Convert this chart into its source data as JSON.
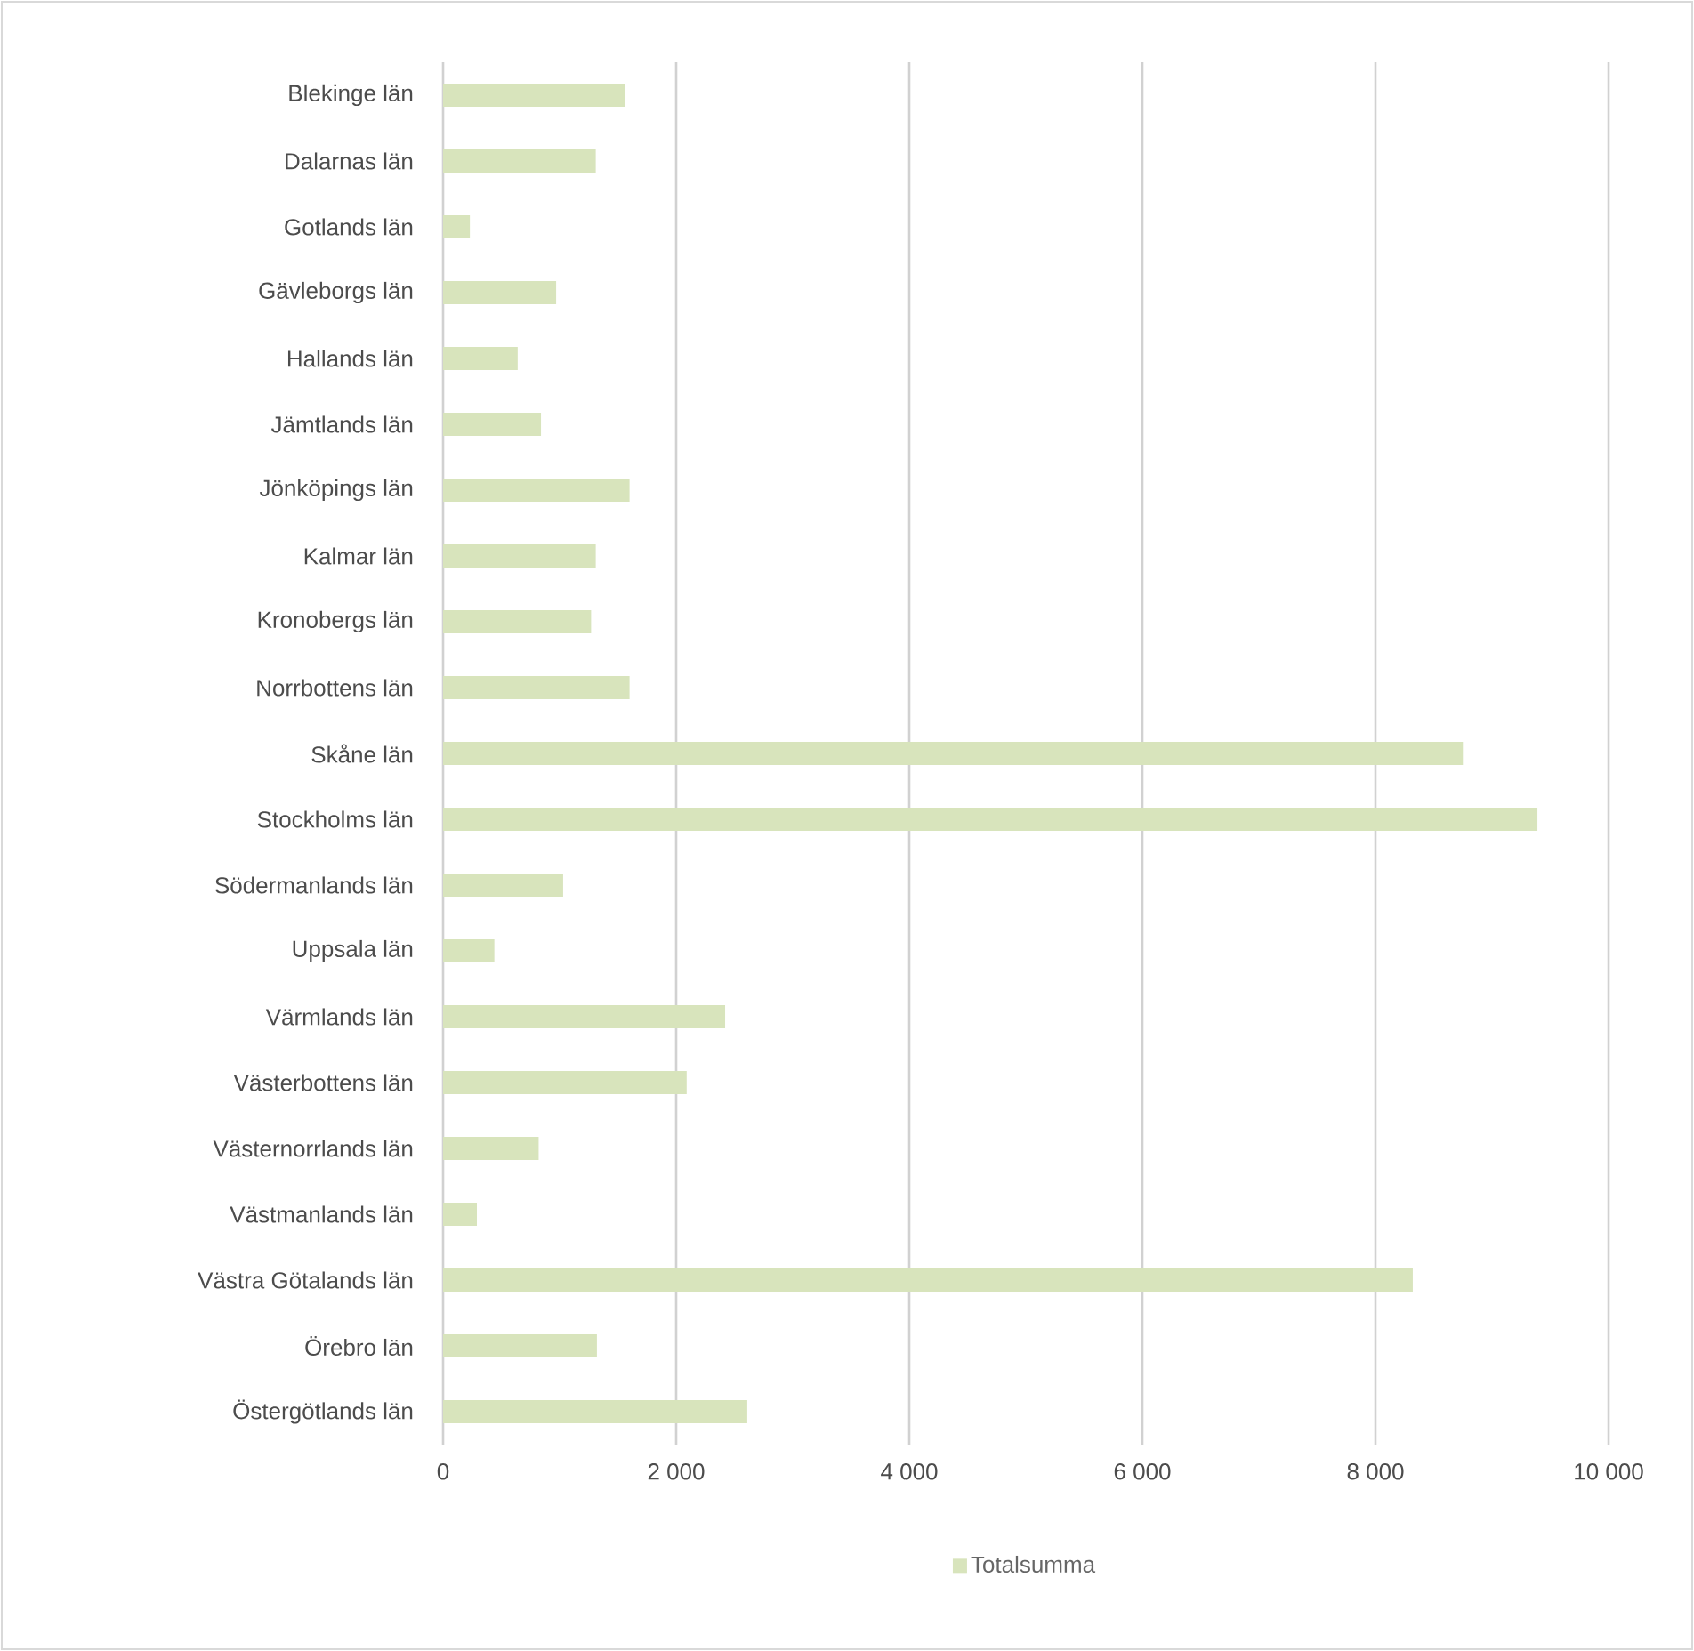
{
  "chart_data": {
    "type": "bar",
    "orientation": "horizontal",
    "categories": [
      "Blekinge län",
      "Dalarnas län",
      "Gotlands län",
      "Gävleborgs län",
      "Hallands län",
      "Jämtlands län",
      "Jönköpings län",
      "Kalmar län",
      "Kronobergs län",
      "Norrbottens län",
      "Skåne län",
      "Stockholms län",
      "Södermanlands län",
      "Uppsala län",
      "Värmlands län",
      "Västerbottens län",
      "Västernorrlands län",
      "Västmanlands län",
      "Västra Götalands län",
      "Örebro län",
      "Östergötlands län"
    ],
    "series": [
      {
        "name": "Totalsumma",
        "color": "#d8e4bc",
        "values": [
          1560,
          1310,
          230,
          970,
          640,
          840,
          1600,
          1310,
          1270,
          1600,
          8750,
          9390,
          1030,
          440,
          2420,
          2090,
          820,
          290,
          8320,
          1320,
          2610
        ]
      }
    ],
    "xlim": [
      0,
      10000
    ],
    "xticks": [
      {
        "value": 0,
        "label": "0"
      },
      {
        "value": 2000,
        "label": "2 000"
      },
      {
        "value": 4000,
        "label": "4 000"
      },
      {
        "value": 6000,
        "label": "6 000"
      },
      {
        "value": 8000,
        "label": "8 000"
      },
      {
        "value": 10000,
        "label": "10 000"
      }
    ],
    "grid": "x",
    "legend": "bottom"
  }
}
